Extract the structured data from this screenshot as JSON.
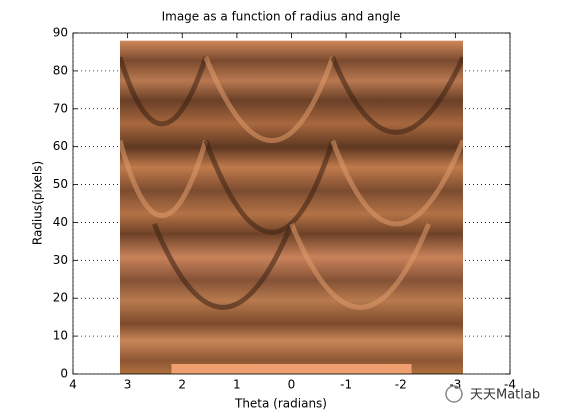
{
  "chart_data": {
    "type": "image",
    "title": "Image as a function of radius and angle",
    "x_label": "Theta (radians)",
    "y_label": "Radius(pixels)",
    "xlim": [
      4,
      -4
    ],
    "xticks": [
      4,
      3,
      2,
      1,
      0,
      -1,
      -2,
      -3,
      -4
    ],
    "ylim": [
      0,
      90
    ],
    "yticks": [
      0,
      10,
      20,
      30,
      40,
      50,
      60,
      70,
      80,
      90
    ],
    "grid": true,
    "image_x": [
      3.14,
      -3.14
    ],
    "image_y": [
      0,
      88
    ],
    "colormap": "copper"
  },
  "watermark": "天天Matlab"
}
